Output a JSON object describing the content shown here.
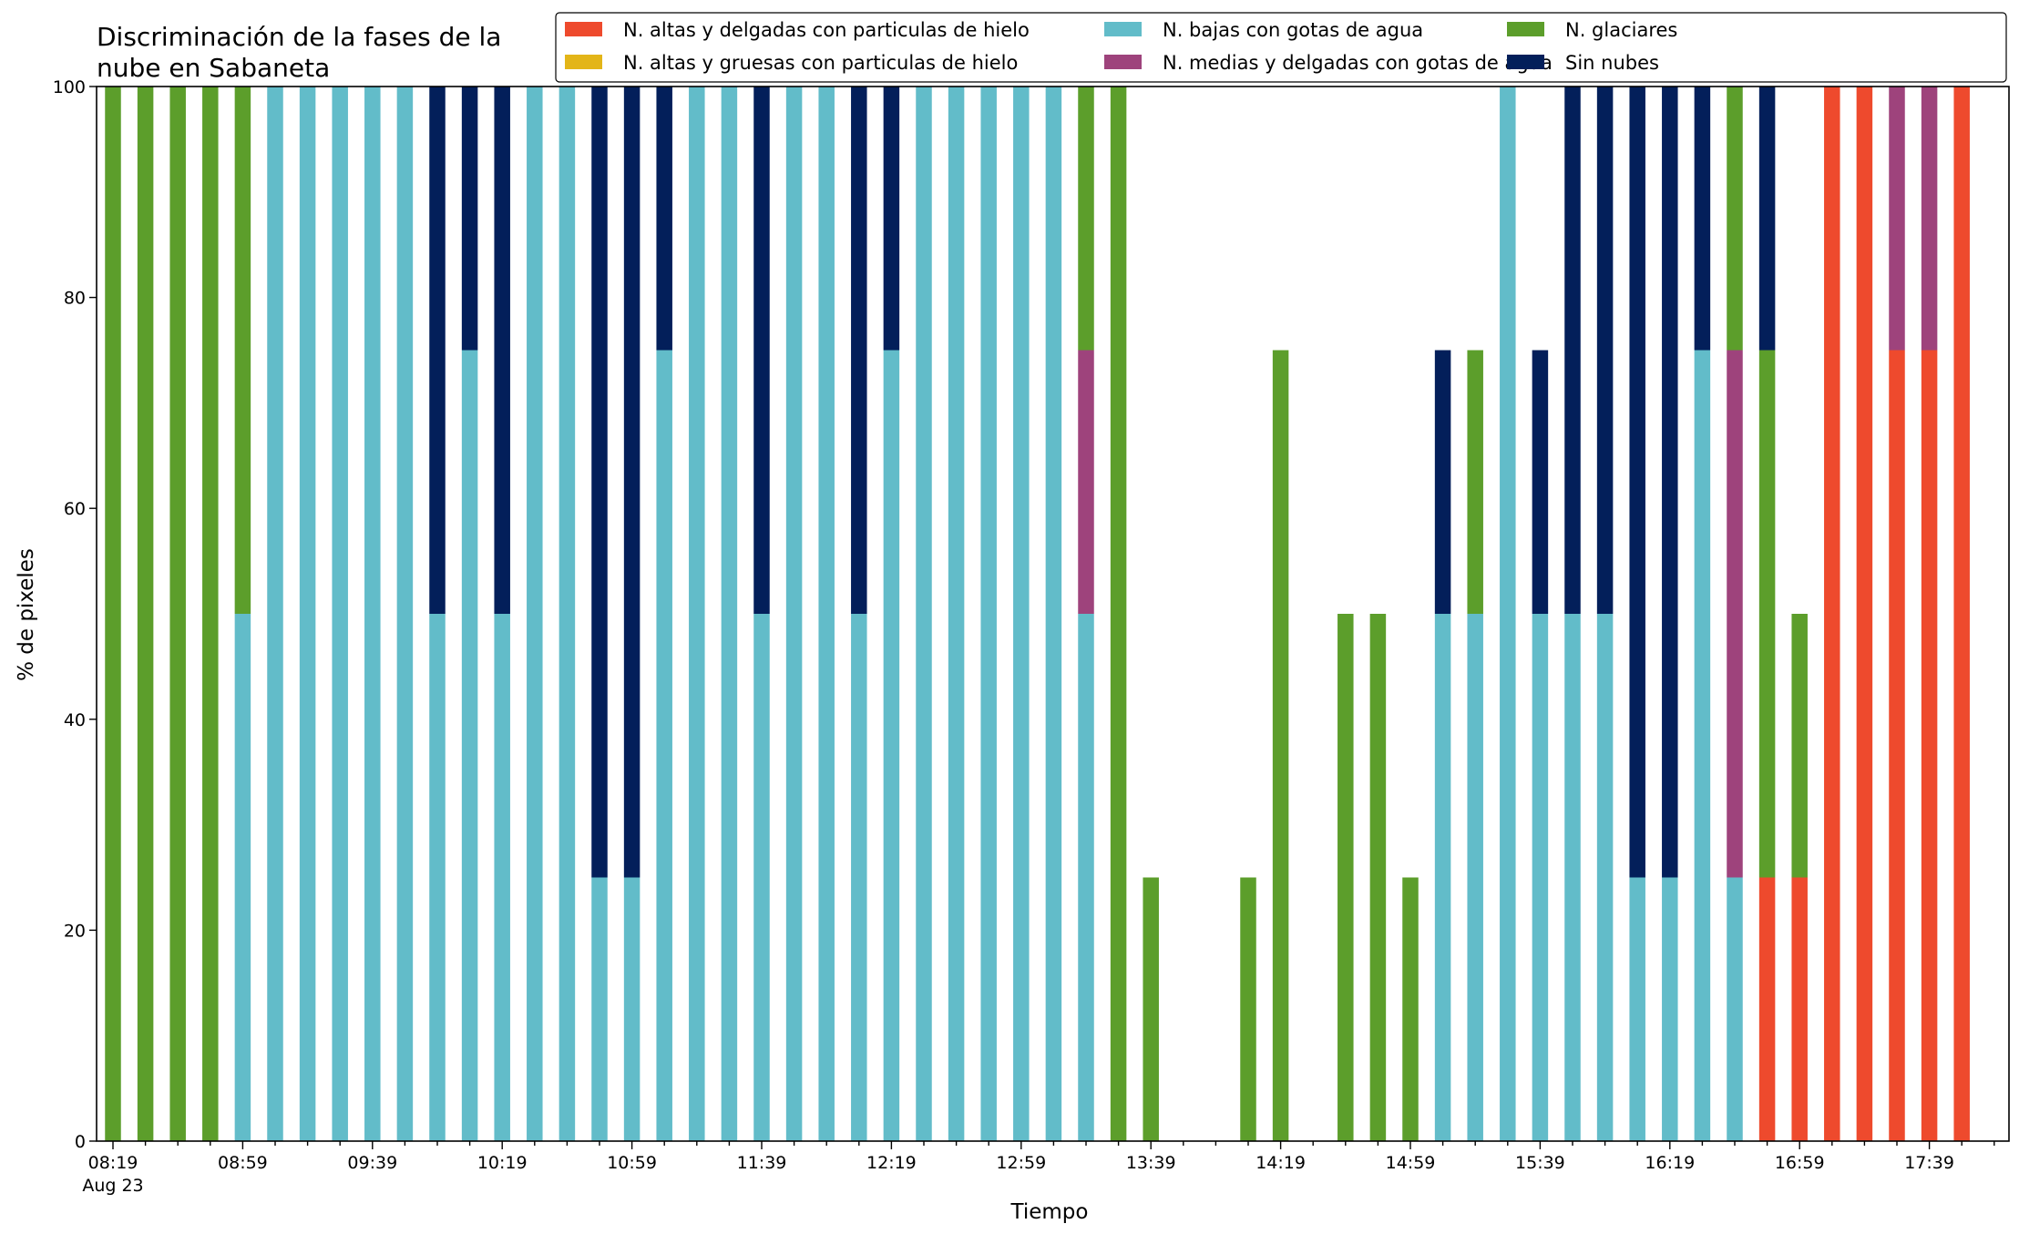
{
  "chart_data": {
    "type": "bar",
    "stacked": true,
    "title_lines": [
      "Discriminación de la fases de la",
      "nube en Sabaneta"
    ],
    "xlabel": "Tiempo",
    "ylabel": "% de pixeles",
    "ylim": [
      0,
      100
    ],
    "yticks": [
      0,
      20,
      40,
      60,
      80,
      100
    ],
    "grid": false,
    "legend_position": "top-right",
    "x_start": "08:19",
    "x_step_minutes": 10,
    "xtick_labels": [
      "08:19",
      "08:59",
      "09:39",
      "10:19",
      "10:59",
      "11:39",
      "12:19",
      "12:59",
      "13:39",
      "14:19",
      "14:59",
      "15:39",
      "16:19",
      "16:59",
      "17:39"
    ],
    "xtick_date_label": "Aug 23",
    "categories": [
      "08:19",
      "08:29",
      "08:39",
      "08:49",
      "08:59",
      "09:09",
      "09:19",
      "09:29",
      "09:39",
      "09:49",
      "09:59",
      "10:09",
      "10:19",
      "10:29",
      "10:39",
      "10:49",
      "10:59",
      "11:09",
      "11:19",
      "11:29",
      "11:39",
      "11:49",
      "11:59",
      "12:09",
      "12:19",
      "12:29",
      "12:39",
      "12:49",
      "12:59",
      "13:09",
      "13:19",
      "13:29",
      "13:39",
      "13:49",
      "13:59",
      "14:09",
      "14:19",
      "14:29",
      "14:39",
      "14:49",
      "14:59",
      "15:09",
      "15:19",
      "15:29",
      "15:39",
      "15:49",
      "15:59",
      "16:09",
      "16:19",
      "16:29",
      "16:39",
      "16:49",
      "16:59",
      "17:09",
      "17:19",
      "17:29",
      "17:39",
      "17:49"
    ],
    "series": [
      {
        "name": "N. altas y delgadas con particulas de hielo",
        "color": "#ee4a2d",
        "values": [
          0,
          0,
          0,
          0,
          0,
          0,
          0,
          0,
          0,
          0,
          0,
          0,
          0,
          0,
          0,
          0,
          0,
          0,
          0,
          0,
          0,
          0,
          0,
          0,
          0,
          0,
          0,
          0,
          0,
          0,
          0,
          0,
          0,
          0,
          0,
          0,
          0,
          0,
          0,
          0,
          0,
          0,
          0,
          0,
          0,
          0,
          0,
          0,
          0,
          0,
          0,
          25,
          25,
          100,
          100,
          75,
          75,
          100
        ]
      },
      {
        "name": "N. altas y gruesas con particulas de hielo",
        "color": "#e3b518",
        "values": [
          0,
          0,
          0,
          0,
          0,
          0,
          0,
          0,
          0,
          0,
          0,
          0,
          0,
          0,
          0,
          0,
          0,
          0,
          0,
          0,
          0,
          0,
          0,
          0,
          0,
          0,
          0,
          0,
          0,
          0,
          0,
          0,
          0,
          0,
          0,
          0,
          0,
          0,
          0,
          0,
          0,
          0,
          0,
          0,
          0,
          0,
          0,
          0,
          0,
          0,
          0,
          0,
          0,
          0,
          0,
          0,
          0,
          0
        ]
      },
      {
        "name": "N. bajas con gotas de agua",
        "color": "#62bcc9",
        "values": [
          0,
          0,
          0,
          0,
          50,
          100,
          100,
          100,
          100,
          100,
          50,
          75,
          50,
          100,
          100,
          25,
          25,
          75,
          100,
          100,
          50,
          100,
          100,
          50,
          75,
          100,
          100,
          100,
          100,
          100,
          50,
          0,
          0,
          0,
          0,
          0,
          0,
          0,
          0,
          0,
          0,
          50,
          50,
          100,
          50,
          50,
          50,
          25,
          25,
          75,
          25,
          0,
          0,
          0,
          0,
          0,
          0,
          0
        ]
      },
      {
        "name": "N. medias y delgadas con gotas de agua",
        "color": "#9e437c",
        "values": [
          0,
          0,
          0,
          0,
          0,
          0,
          0,
          0,
          0,
          0,
          0,
          0,
          0,
          0,
          0,
          0,
          0,
          0,
          0,
          0,
          0,
          0,
          0,
          0,
          0,
          0,
          0,
          0,
          0,
          0,
          25,
          0,
          0,
          0,
          0,
          0,
          0,
          0,
          0,
          0,
          0,
          0,
          0,
          0,
          0,
          0,
          0,
          0,
          0,
          0,
          50,
          0,
          0,
          0,
          0,
          25,
          25,
          0
        ]
      },
      {
        "name": "N. glaciares",
        "color": "#5c9e2b",
        "values": [
          100,
          100,
          100,
          100,
          50,
          0,
          0,
          0,
          0,
          0,
          0,
          0,
          0,
          0,
          0,
          0,
          0,
          0,
          0,
          0,
          0,
          0,
          0,
          0,
          0,
          0,
          0,
          0,
          0,
          0,
          25,
          100,
          25,
          0,
          0,
          25,
          75,
          0,
          50,
          50,
          25,
          0,
          25,
          0,
          0,
          0,
          0,
          0,
          0,
          0,
          25,
          50,
          25,
          0,
          0,
          0,
          0,
          0
        ]
      },
      {
        "name": "Sin nubes",
        "color": "#031f5a",
        "values": [
          0,
          0,
          0,
          0,
          0,
          0,
          0,
          0,
          0,
          0,
          50,
          25,
          50,
          0,
          0,
          75,
          75,
          25,
          0,
          0,
          50,
          0,
          0,
          50,
          25,
          0,
          0,
          0,
          0,
          0,
          0,
          0,
          0,
          0,
          0,
          0,
          0,
          0,
          0,
          0,
          0,
          25,
          0,
          0,
          25,
          50,
          50,
          75,
          75,
          25,
          0,
          25,
          0,
          0,
          0,
          0,
          0,
          0
        ]
      }
    ],
    "overrides_note": ""
  }
}
